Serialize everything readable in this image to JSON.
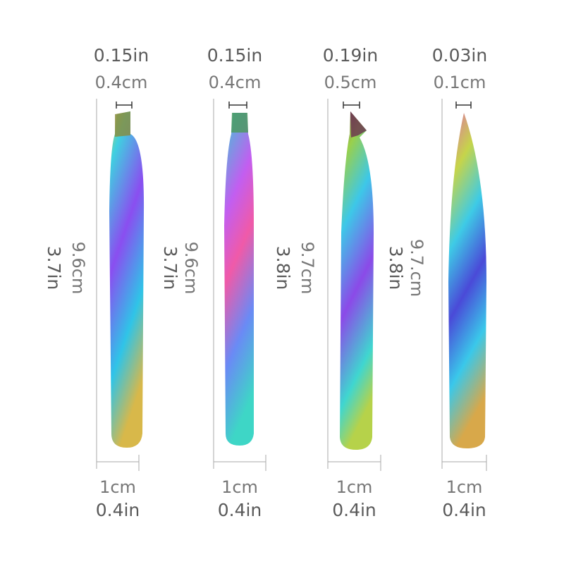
{
  "tweezers": [
    {
      "tip_in": "0.15in",
      "tip_cm": "0.4cm",
      "length_cm": "9.6cm",
      "length_in": "3.7in",
      "width_cm": "1cm",
      "width_in": "0.4in"
    },
    {
      "tip_in": "0.15in",
      "tip_cm": "0.4cm",
      "length_cm": "9.6cm",
      "length_in": "3.7in",
      "width_cm": "1cm",
      "width_in": "0.4in"
    },
    {
      "tip_in": "0.19in",
      "tip_cm": "0.5cm",
      "length_cm": "9.7cm",
      "length_in": "3.8in",
      "width_cm": "1cm",
      "width_in": "0.4in"
    },
    {
      "tip_in": "0.03in",
      "tip_cm": "0.1cm",
      "length_cm": "9.7.cm",
      "length_in": "3.8in",
      "width_cm": "1cm",
      "width_in": "0.4in"
    }
  ]
}
